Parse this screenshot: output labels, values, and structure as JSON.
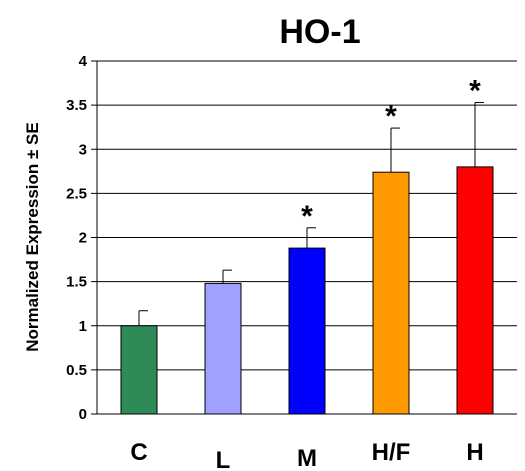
{
  "chart_data": {
    "type": "bar",
    "title": "HO-1",
    "ylabel": "Normalized Expression ± SE",
    "xlabel": "",
    "ylim": [
      0,
      4
    ],
    "yticks": [
      "0",
      "0.5",
      "1",
      "1.5",
      "2",
      "2.5",
      "3",
      "3.5",
      "4"
    ],
    "grid": true,
    "categories": [
      "C",
      "L",
      "M",
      "H/F",
      "H"
    ],
    "values": [
      1.0,
      1.48,
      1.88,
      2.74,
      2.8
    ],
    "errors": [
      0.17,
      0.15,
      0.23,
      0.5,
      0.73
    ],
    "significance": [
      "",
      "",
      "*",
      "*",
      "*"
    ],
    "colors": [
      "#2e8b57",
      "#a0a0ff",
      "#0000ff",
      "#ff9900",
      "#ff0000"
    ]
  }
}
